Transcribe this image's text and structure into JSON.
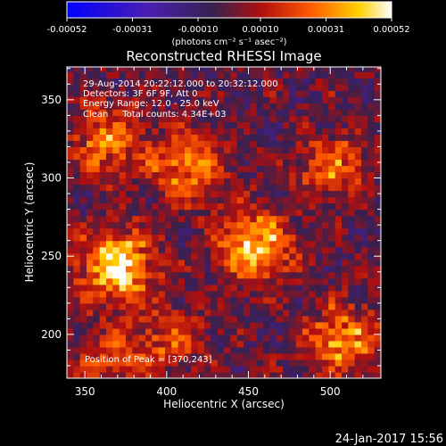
{
  "chart_data": {
    "type": "heatmap",
    "title": "Reconstructed RHESSI Image",
    "xlabel": "Heliocentric X (arcsec)",
    "ylabel": "Heliocentric Y (arcsec)",
    "xlim": [
      339,
      531
    ],
    "ylim": [
      172,
      371
    ],
    "x_ticks": [
      "350",
      "400",
      "450",
      "500"
    ],
    "y_ticks": [
      "200",
      "250",
      "300",
      "350"
    ],
    "x_tick_values": [
      350,
      400,
      450,
      500
    ],
    "y_tick_values": [
      200,
      250,
      300,
      350
    ],
    "colorbar": {
      "tick_labels": [
        "-0.00052",
        "-0.00031",
        "-0.00010",
        "0.00010",
        "0.00031",
        "0.00052"
      ],
      "tick_values": [
        -0.00052,
        -0.00031,
        -0.0001,
        0.0001,
        0.00031,
        0.00052
      ],
      "units_label": "(photons cm⁻² s⁻¹ asec⁻²)",
      "range": [
        -0.00052,
        0.00052
      ],
      "colormap": "blue-purple-red-yellow-white"
    },
    "annotations": [
      "29-Aug-2014 20:22:12.000 to 20:32:12.000",
      "Detectors: 3F 6F 9F, Att 0",
      "Energy Range: 12.0 - 25.0 keV",
      "Clean     Total counts: 4.34E+03"
    ],
    "peak_label": "Position of Peak = [370,243]",
    "bright_sources": [
      {
        "x": 368,
        "y": 242,
        "intensity": 0.00052
      },
      {
        "x": 452,
        "y": 255,
        "intensity": 0.00045
      },
      {
        "x": 410,
        "y": 305,
        "intensity": 0.00033
      },
      {
        "x": 362,
        "y": 322,
        "intensity": 0.0003
      },
      {
        "x": 500,
        "y": 305,
        "intensity": 0.00025
      },
      {
        "x": 505,
        "y": 195,
        "intensity": 0.00035
      },
      {
        "x": 400,
        "y": 195,
        "intensity": 0.0002
      },
      {
        "x": 365,
        "y": 180,
        "intensity": 0.0002
      }
    ]
  },
  "footer": {
    "date": "24-Jan-2017 15:56"
  },
  "colors": {
    "background": "#000000",
    "text": "#ffffff"
  }
}
